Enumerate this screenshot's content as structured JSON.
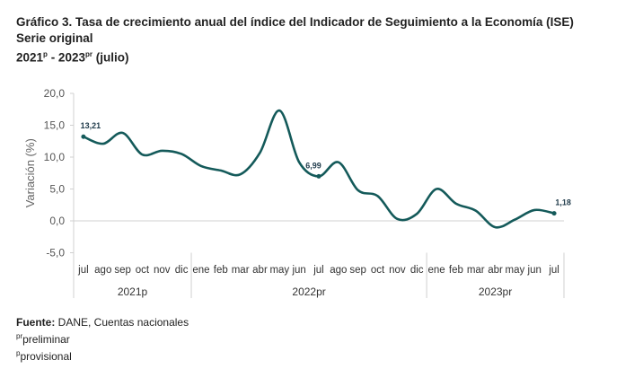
{
  "title": {
    "line1": "Gráfico 3. Tasa de crecimiento anual del índice del Indicador de Seguimiento a la Economía (ISE)",
    "line2": "Serie original",
    "line3_a": "2021",
    "line3_a_sup": "p",
    "line3_b": " - 2023",
    "line3_b_sup": "pr",
    "line3_c": " (julio)"
  },
  "chart_data": {
    "type": "line",
    "ylabel": "Variación (%)",
    "ylim": [
      -5,
      20
    ],
    "yticks": [
      "20,0",
      "15,0",
      "10,0",
      "5,0",
      "0,0",
      "-5,0"
    ],
    "ytick_values": [
      20,
      15,
      10,
      5,
      0,
      -5
    ],
    "categories": [
      "jul",
      "ago",
      "sep",
      "oct",
      "nov",
      "dic",
      "ene",
      "feb",
      "mar",
      "abr",
      "may",
      "jun",
      "jul",
      "ago",
      "sep",
      "oct",
      "nov",
      "dic",
      "ene",
      "feb",
      "mar",
      "abr",
      "may",
      "jun",
      "jul"
    ],
    "groups": [
      {
        "label": "2021p",
        "count": 6
      },
      {
        "label": "2022pr",
        "count": 12
      },
      {
        "label": "2023pr",
        "count": 7
      }
    ],
    "series": [
      {
        "values": [
          13.21,
          12.1,
          13.8,
          10.4,
          11.0,
          10.5,
          8.6,
          7.9,
          7.3,
          10.7,
          17.3,
          9.2,
          6.99,
          9.2,
          4.8,
          3.9,
          0.3,
          1.1,
          5.0,
          2.7,
          1.6,
          -1.0,
          0.2,
          1.7,
          1.18
        ],
        "color": "#145a5a"
      }
    ],
    "data_labels": [
      {
        "index": 0,
        "text": "13,21"
      },
      {
        "index": 12,
        "text": "6,99"
      },
      {
        "index": 24,
        "text": "1,18"
      }
    ],
    "grid": false
  },
  "footer": {
    "source_label": "Fuente:",
    "source_text": " DANE, Cuentas nacionales",
    "note1_sup": "pr",
    "note1": "preliminar",
    "note2_sup": "p",
    "note2": "provisional"
  }
}
